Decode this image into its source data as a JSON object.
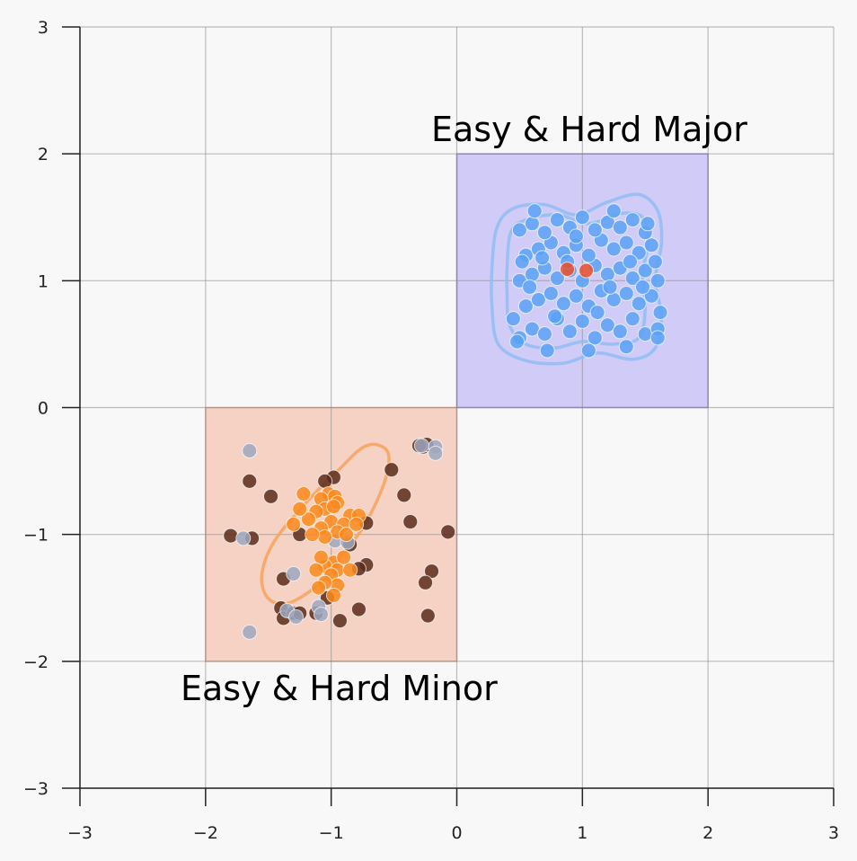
{
  "chart_data": {
    "type": "scatter",
    "title": "",
    "xlabel": "",
    "ylabel": "",
    "xlim": [
      -3,
      3
    ],
    "ylim": [
      -3,
      3
    ],
    "xticks": [
      -3,
      -2,
      -1,
      0,
      1,
      2,
      3
    ],
    "yticks": [
      -3,
      -2,
      -1,
      0,
      1,
      2,
      3
    ],
    "x_tick_labels": [
      "−3",
      "−2",
      "−1",
      "0",
      "1",
      "2",
      "3"
    ],
    "y_tick_labels": [
      "−3",
      "−2",
      "−1",
      "0",
      "1",
      "2",
      "3"
    ],
    "grid": true,
    "regions": [
      {
        "label": "Easy & Hard Major",
        "x": [
          0,
          2
        ],
        "y": [
          0,
          2
        ],
        "color": "#7c6cf5"
      },
      {
        "label": "Easy & Hard Minor",
        "x": [
          -2,
          0
        ],
        "y": [
          -2,
          0
        ],
        "color": "#f2a384"
      }
    ],
    "contours": [
      {
        "color": "#8fbdf4",
        "points": [
          [
            0.28,
            1.1
          ],
          [
            0.32,
            1.42
          ],
          [
            0.45,
            1.57
          ],
          [
            0.7,
            1.6
          ],
          [
            0.95,
            1.52
          ],
          [
            1.2,
            1.62
          ],
          [
            1.45,
            1.68
          ],
          [
            1.6,
            1.55
          ],
          [
            1.63,
            1.3
          ],
          [
            1.58,
            1.0
          ],
          [
            1.63,
            0.72
          ],
          [
            1.58,
            0.47
          ],
          [
            1.4,
            0.38
          ],
          [
            1.12,
            0.43
          ],
          [
            0.85,
            0.35
          ],
          [
            0.55,
            0.37
          ],
          [
            0.33,
            0.5
          ],
          [
            0.28,
            0.8
          ]
        ]
      },
      {
        "color": "#8fbdf4",
        "points": [
          [
            0.4,
            1.1
          ],
          [
            0.43,
            1.38
          ],
          [
            0.55,
            1.48
          ],
          [
            0.8,
            1.52
          ],
          [
            1.05,
            1.45
          ],
          [
            1.3,
            1.53
          ],
          [
            1.48,
            1.5
          ],
          [
            1.52,
            1.3
          ],
          [
            1.48,
            1.05
          ],
          [
            1.5,
            0.78
          ],
          [
            1.45,
            0.55
          ],
          [
            1.25,
            0.5
          ],
          [
            1.0,
            0.52
          ],
          [
            0.78,
            0.47
          ],
          [
            0.55,
            0.5
          ],
          [
            0.42,
            0.65
          ],
          [
            0.4,
            0.9
          ]
        ]
      },
      {
        "color": "#f7a35c",
        "points": [
          [
            -1.55,
            -1.3
          ],
          [
            -1.45,
            -1.05
          ],
          [
            -1.2,
            -0.75
          ],
          [
            -0.95,
            -0.5
          ],
          [
            -0.72,
            -0.3
          ],
          [
            -0.55,
            -0.35
          ],
          [
            -0.58,
            -0.6
          ],
          [
            -0.75,
            -0.95
          ],
          [
            -0.95,
            -1.2
          ],
          [
            -1.05,
            -1.35
          ],
          [
            -1.25,
            -1.5
          ],
          [
            -1.4,
            -1.55
          ],
          [
            -1.52,
            -1.48
          ]
        ]
      }
    ],
    "series": [
      {
        "color": "#5aa2f5",
        "points": [
          [
            0.5,
            0.55
          ],
          [
            0.6,
            0.62
          ],
          [
            0.7,
            0.58
          ],
          [
            0.8,
            0.7
          ],
          [
            0.9,
            0.6
          ],
          [
            1.0,
            0.68
          ],
          [
            1.1,
            0.55
          ],
          [
            1.2,
            0.65
          ],
          [
            1.3,
            0.6
          ],
          [
            1.4,
            0.7
          ],
          [
            1.5,
            0.58
          ],
          [
            1.6,
            0.62
          ],
          [
            0.55,
            0.8
          ],
          [
            0.65,
            0.85
          ],
          [
            0.75,
            0.9
          ],
          [
            0.85,
            0.82
          ],
          [
            0.95,
            0.88
          ],
          [
            1.05,
            0.8
          ],
          [
            1.15,
            0.92
          ],
          [
            1.25,
            0.85
          ],
          [
            1.35,
            0.9
          ],
          [
            1.45,
            0.82
          ],
          [
            1.55,
            0.88
          ],
          [
            0.5,
            1.0
          ],
          [
            0.6,
            1.05
          ],
          [
            0.7,
            1.1
          ],
          [
            0.8,
            1.02
          ],
          [
            0.9,
            1.08
          ],
          [
            1.0,
            1.0
          ],
          [
            1.1,
            1.12
          ],
          [
            1.2,
            1.05
          ],
          [
            1.3,
            1.1
          ],
          [
            1.4,
            1.02
          ],
          [
            1.5,
            1.08
          ],
          [
            1.6,
            1.0
          ],
          [
            0.55,
            1.2
          ],
          [
            0.65,
            1.25
          ],
          [
            0.75,
            1.3
          ],
          [
            0.85,
            1.22
          ],
          [
            0.95,
            1.28
          ],
          [
            1.05,
            1.2
          ],
          [
            1.15,
            1.32
          ],
          [
            1.25,
            1.25
          ],
          [
            1.35,
            1.3
          ],
          [
            1.45,
            1.22
          ],
          [
            1.55,
            1.28
          ],
          [
            0.5,
            1.4
          ],
          [
            0.6,
            1.45
          ],
          [
            0.7,
            1.38
          ],
          [
            0.8,
            1.48
          ],
          [
            0.9,
            1.42
          ],
          [
            1.0,
            1.5
          ],
          [
            1.1,
            1.4
          ],
          [
            1.2,
            1.46
          ],
          [
            1.3,
            1.42
          ],
          [
            1.4,
            1.48
          ],
          [
            1.5,
            1.38
          ],
          [
            0.45,
            0.7
          ],
          [
            0.52,
            1.15
          ],
          [
            0.58,
            0.95
          ],
          [
            1.62,
            0.75
          ],
          [
            1.58,
            1.15
          ],
          [
            1.52,
            1.45
          ],
          [
            0.72,
            0.45
          ],
          [
            1.05,
            0.45
          ],
          [
            1.35,
            0.48
          ],
          [
            0.48,
            0.52
          ],
          [
            1.6,
            0.55
          ],
          [
            0.62,
            1.55
          ],
          [
            1.25,
            1.55
          ],
          [
            0.95,
            1.35
          ],
          [
            0.78,
            0.72
          ],
          [
            1.12,
            0.75
          ],
          [
            1.38,
            1.15
          ],
          [
            0.68,
            1.18
          ],
          [
            1.48,
            0.95
          ],
          [
            0.88,
            1.15
          ],
          [
            1.22,
            0.95
          ]
        ]
      },
      {
        "color": "#e8502a",
        "points": [
          [
            0.88,
            1.09
          ],
          [
            1.03,
            1.08
          ]
        ]
      },
      {
        "color": "#5a2c1a",
        "points": [
          [
            -1.65,
            -0.58
          ],
          [
            -1.48,
            -0.7
          ],
          [
            -1.8,
            -1.01
          ],
          [
            -1.63,
            -1.03
          ],
          [
            -1.38,
            -1.35
          ],
          [
            -1.4,
            -1.58
          ],
          [
            -1.38,
            -1.66
          ],
          [
            -1.3,
            -1.62
          ],
          [
            -1.25,
            -1.62
          ],
          [
            -1.12,
            -1.62
          ],
          [
            -1.03,
            -1.5
          ],
          [
            -0.93,
            -1.68
          ],
          [
            -0.78,
            -1.59
          ],
          [
            -0.72,
            -1.24
          ],
          [
            -0.78,
            -1.27
          ],
          [
            -0.98,
            -0.55
          ],
          [
            -1.05,
            -0.58
          ],
          [
            -1.25,
            -1.0
          ],
          [
            -0.72,
            -0.91
          ],
          [
            -0.85,
            -1.08
          ],
          [
            -0.52,
            -0.49
          ],
          [
            -0.42,
            -0.69
          ],
          [
            -0.37,
            -0.9
          ],
          [
            -0.27,
            -0.31
          ],
          [
            -0.24,
            -0.29
          ],
          [
            -0.3,
            -0.3
          ],
          [
            -0.07,
            -0.98
          ],
          [
            -0.2,
            -1.29
          ],
          [
            -0.25,
            -1.38
          ],
          [
            -0.23,
            -1.64
          ]
        ]
      },
      {
        "color": "#9ea8c0",
        "points": [
          [
            -1.65,
            -0.34
          ],
          [
            -1.7,
            -1.03
          ],
          [
            -1.65,
            -1.77
          ],
          [
            -1.3,
            -1.31
          ],
          [
            -1.35,
            -1.6
          ],
          [
            -1.28,
            -1.65
          ],
          [
            -1.1,
            -1.57
          ],
          [
            -1.08,
            -1.63
          ],
          [
            -0.97,
            -1.05
          ],
          [
            -0.87,
            -1.06
          ],
          [
            -0.17,
            -0.31
          ],
          [
            -0.17,
            -0.36
          ],
          [
            -0.28,
            -0.3
          ]
        ]
      },
      {
        "color": "#fa8a1c",
        "points": [
          [
            -1.02,
            -0.68
          ],
          [
            -0.97,
            -0.7
          ],
          [
            -1.08,
            -0.72
          ],
          [
            -0.95,
            -0.75
          ],
          [
            -1.05,
            -0.8
          ],
          [
            -1.12,
            -0.82
          ],
          [
            -0.85,
            -0.85
          ],
          [
            -0.98,
            -0.78
          ],
          [
            -1.18,
            -0.88
          ],
          [
            -1.0,
            -0.9
          ],
          [
            -0.9,
            -0.92
          ],
          [
            -1.08,
            -0.95
          ],
          [
            -0.95,
            -0.98
          ],
          [
            -0.88,
            -1.0
          ],
          [
            -1.05,
            -1.02
          ],
          [
            -1.15,
            -1.0
          ],
          [
            -0.78,
            -0.85
          ],
          [
            -0.8,
            -0.92
          ],
          [
            -1.3,
            -0.92
          ],
          [
            -1.25,
            -0.8
          ],
          [
            -1.22,
            -0.68
          ],
          [
            -0.98,
            -1.22
          ],
          [
            -1.05,
            -1.25
          ],
          [
            -0.95,
            -1.28
          ],
          [
            -0.9,
            -1.18
          ],
          [
            -1.08,
            -1.18
          ],
          [
            -1.0,
            -1.32
          ],
          [
            -0.95,
            -1.4
          ],
          [
            -1.05,
            -1.38
          ],
          [
            -1.1,
            -1.42
          ],
          [
            -0.98,
            -1.48
          ],
          [
            -0.85,
            -1.28
          ],
          [
            -1.12,
            -1.28
          ]
        ]
      }
    ],
    "region_labels": [
      "Easy & Hard Major",
      "Easy & Hard Minor"
    ]
  }
}
